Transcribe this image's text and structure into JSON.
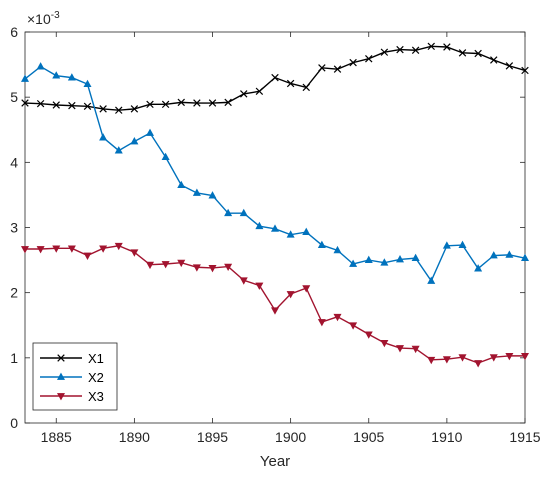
{
  "chart_data": {
    "type": "line",
    "title": "",
    "xlabel": "Year",
    "ylabel": "",
    "y_multiplier": "×10",
    "y_exponent": "-3",
    "xlim": [
      1883,
      1915
    ],
    "ylim": [
      0,
      6
    ],
    "x_ticks": [
      1885,
      1890,
      1895,
      1900,
      1905,
      1910,
      1915
    ],
    "y_ticks": [
      0,
      1,
      2,
      3,
      4,
      5,
      6
    ],
    "grid": false,
    "legend_position": "bottom-left",
    "x": [
      1883,
      1884,
      1885,
      1886,
      1887,
      1888,
      1889,
      1890,
      1891,
      1892,
      1893,
      1894,
      1895,
      1896,
      1897,
      1898,
      1899,
      1900,
      1901,
      1902,
      1903,
      1904,
      1905,
      1906,
      1907,
      1908,
      1909,
      1910,
      1911,
      1912,
      1913,
      1914,
      1915
    ],
    "series": [
      {
        "name": "X1",
        "color": "#000000",
        "marker": "x",
        "values": [
          4.91,
          4.9,
          4.88,
          4.87,
          4.86,
          4.82,
          4.8,
          4.82,
          4.89,
          4.89,
          4.92,
          4.91,
          4.91,
          4.92,
          5.05,
          5.09,
          5.3,
          5.21,
          5.15,
          5.45,
          5.43,
          5.53,
          5.59,
          5.69,
          5.73,
          5.72,
          5.78,
          5.77,
          5.68,
          5.67,
          5.57,
          5.48,
          5.41
        ]
      },
      {
        "name": "X2",
        "color": "#0072BD",
        "marker": "triangle-up",
        "values": [
          5.28,
          5.47,
          5.33,
          5.3,
          5.2,
          4.38,
          4.18,
          4.32,
          4.45,
          4.08,
          3.65,
          3.53,
          3.49,
          3.22,
          3.22,
          3.02,
          2.98,
          2.89,
          2.93,
          2.73,
          2.65,
          2.44,
          2.5,
          2.46,
          2.51,
          2.53,
          2.18,
          2.72,
          2.73,
          2.37,
          2.57,
          2.58,
          2.53
        ]
      },
      {
        "name": "X3",
        "color": "#A2142F",
        "marker": "triangle-down",
        "values": [
          2.67,
          2.67,
          2.68,
          2.68,
          2.57,
          2.68,
          2.72,
          2.62,
          2.43,
          2.44,
          2.46,
          2.39,
          2.38,
          2.4,
          2.19,
          2.11,
          1.73,
          1.98,
          2.07,
          1.55,
          1.63,
          1.5,
          1.36,
          1.23,
          1.15,
          1.14,
          0.97,
          0.98,
          1.01,
          0.92,
          1.01,
          1.03,
          1.03
        ]
      }
    ]
  }
}
